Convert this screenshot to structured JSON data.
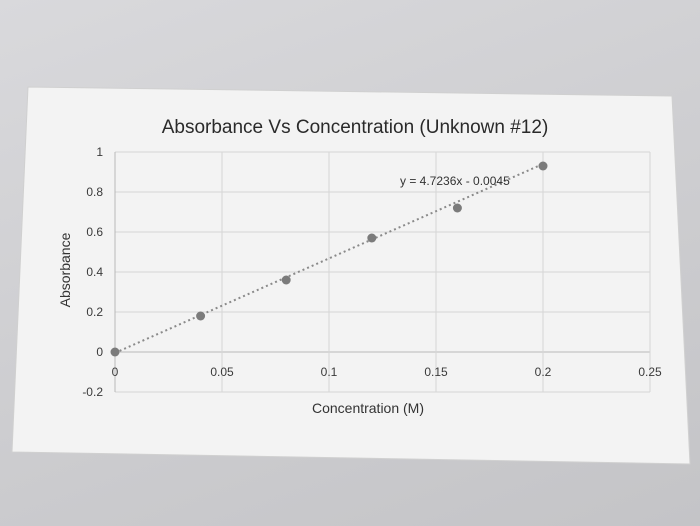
{
  "chart_data": {
    "type": "scatter",
    "title": "Absorbance Vs Concentration (Unknown #12)",
    "xlabel": "Concentration (M)",
    "ylabel": "Absorbance",
    "xlim": [
      0,
      0.25
    ],
    "ylim": [
      -0.2,
      1
    ],
    "x_ticks": [
      "0",
      "0.05",
      "0.1",
      "0.15",
      "0.2",
      "0.25"
    ],
    "y_ticks": [
      "-0.2",
      "0",
      "0.2",
      "0.4",
      "0.6",
      "0.8",
      "1"
    ],
    "grid": true,
    "legend": "none",
    "series": [
      {
        "x": [
          0,
          0.04,
          0.08,
          0.12,
          0.16,
          0.2
        ],
        "y": [
          0,
          0.18,
          0.36,
          0.57,
          0.72,
          0.93
        ]
      }
    ],
    "trendline": {
      "type": "linear",
      "slope": 4.7236,
      "intercept": -0.0045,
      "equation": "y = 4.7236x - 0.0045"
    },
    "colors": {
      "marker": "#7b7b7b",
      "trendline": "#8a8a8a",
      "grid": "#d6d6d6"
    }
  }
}
